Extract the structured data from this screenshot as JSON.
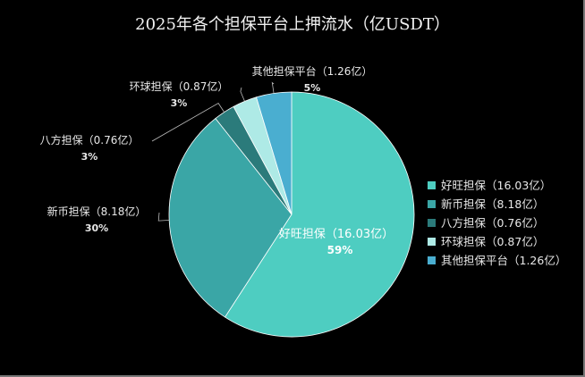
{
  "chart_data": {
    "type": "pie",
    "title": "2025年各个担保平台上押流水（亿USDT）",
    "slices": [
      {
        "label": "好旺担保（16.03亿）",
        "value": 16.03,
        "percent_label": "59%",
        "color": "#4ecdc1"
      },
      {
        "label": "新币担保（8.18亿）",
        "value": 8.18,
        "percent_label": "30%",
        "color": "#3aa6a6"
      },
      {
        "label": "八方担保（0.76亿）",
        "value": 0.76,
        "percent_label": "3%",
        "color": "#2b7b7b"
      },
      {
        "label": "环球担保（0.87亿）",
        "value": 0.87,
        "percent_label": "3%",
        "color": "#aeeae6"
      },
      {
        "label": "其他担保平台（1.26亿）",
        "value": 1.26,
        "percent_label": "5%",
        "color": "#4aaed0"
      }
    ],
    "legend_position": "right"
  }
}
